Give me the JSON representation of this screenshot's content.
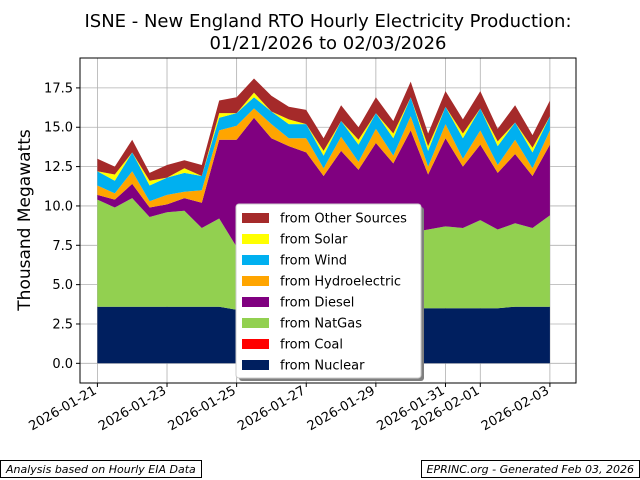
{
  "chart_data": {
    "type": "area",
    "stacked": true,
    "title_line1": "ISNE - New England RTO Hourly Electricity Production:",
    "title_line2": "01/21/2026 to 02/03/2026",
    "xlabel": "",
    "ylabel": "Thousand Megawatts",
    "ylim": [
      -1.25,
      19.4
    ],
    "yticks": [
      0.0,
      2.5,
      5.0,
      7.5,
      10.0,
      12.5,
      15.0,
      17.5
    ],
    "ytick_labels": [
      "0.0",
      "2.5",
      "5.0",
      "7.5",
      "10.0",
      "12.5",
      "15.0",
      "17.5"
    ],
    "xlim": [
      "2026-01-20T12:00",
      "2026-02-03T18:00"
    ],
    "xticks": [
      "2026-01-21",
      "2026-01-23",
      "2026-01-25",
      "2026-01-27",
      "2026-01-29",
      "2026-01-31",
      "2026-02-01",
      "2026-02-03"
    ],
    "grid": true,
    "legend_position": "lower-center",
    "x": [
      "2026-01-21T00:00",
      "2026-01-21T12:00",
      "2026-01-22T00:00",
      "2026-01-22T12:00",
      "2026-01-23T00:00",
      "2026-01-23T12:00",
      "2026-01-24T00:00",
      "2026-01-24T12:00",
      "2026-01-25T00:00",
      "2026-01-25T12:00",
      "2026-01-26T00:00",
      "2026-01-26T12:00",
      "2026-01-27T00:00",
      "2026-01-27T12:00",
      "2026-01-28T00:00",
      "2026-01-28T12:00",
      "2026-01-29T00:00",
      "2026-01-29T12:00",
      "2026-01-30T00:00",
      "2026-01-30T12:00",
      "2026-01-31T00:00",
      "2026-01-31T12:00",
      "2026-02-01T00:00",
      "2026-02-01T12:00",
      "2026-02-02T00:00",
      "2026-02-02T12:00",
      "2026-02-03T00:00"
    ],
    "series": [
      {
        "name": "from Nuclear",
        "color": "#001f5f",
        "values": [
          3.6,
          3.6,
          3.6,
          3.6,
          3.6,
          3.6,
          3.6,
          3.6,
          3.4,
          3.4,
          3.4,
          3.4,
          3.4,
          3.4,
          3.4,
          3.4,
          3.4,
          3.4,
          3.5,
          3.5,
          3.5,
          3.5,
          3.5,
          3.5,
          3.6,
          3.6,
          3.6
        ]
      },
      {
        "name": "from Coal",
        "color": "#ff0000",
        "values": [
          0,
          0,
          0,
          0,
          0,
          0,
          0,
          0,
          0,
          0,
          0,
          0,
          0,
          0,
          0,
          0,
          0,
          0,
          0,
          0,
          0,
          0,
          0,
          0,
          0,
          0,
          0
        ]
      },
      {
        "name": "from NatGas",
        "color": "#92d050",
        "values": [
          6.8,
          6.3,
          6.9,
          5.7,
          6.0,
          6.1,
          5.0,
          5.6,
          4.0,
          4.2,
          4.5,
          4.6,
          4.8,
          4.5,
          4.6,
          4.3,
          4.7,
          4.6,
          4.8,
          5.0,
          5.2,
          5.1,
          5.6,
          5.0,
          5.3,
          5.0,
          5.8
        ]
      },
      {
        "name": "from Diesel",
        "color": "#800080",
        "values": [
          0.3,
          0.5,
          0.9,
          0.6,
          0.5,
          0.8,
          1.6,
          5.0,
          6.8,
          8.0,
          6.4,
          5.8,
          5.2,
          4.0,
          5.5,
          4.6,
          5.9,
          4.7,
          6.5,
          3.5,
          5.6,
          3.9,
          4.8,
          3.6,
          4.4,
          3.3,
          4.5
        ]
      },
      {
        "name": "from Hydroelectric",
        "color": "#ffa500",
        "values": [
          0.6,
          0.4,
          0.8,
          0.4,
          0.6,
          0.4,
          0.8,
          0.6,
          0.9,
          0.6,
          0.9,
          0.5,
          0.9,
          0.5,
          0.9,
          0.5,
          0.9,
          0.5,
          0.9,
          0.5,
          0.9,
          0.5,
          0.9,
          0.5,
          0.9,
          0.5,
          0.9
        ]
      },
      {
        "name": "from Wind",
        "color": "#00b0f0",
        "values": [
          0.9,
          0.8,
          1.2,
          1.0,
          1.1,
          1.2,
          0.9,
          0.8,
          0.8,
          0.7,
          0.8,
          0.9,
          0.9,
          0.8,
          1.0,
          1.1,
          1.0,
          1.1,
          1.2,
          1.0,
          1.1,
          1.3,
          1.4,
          1.2,
          1.1,
          1.0,
          0.9
        ]
      },
      {
        "name": "from Solar",
        "color": "#ffff00",
        "values": [
          0,
          0.4,
          0,
          0.3,
          0,
          0.3,
          0,
          0.3,
          0,
          0.3,
          0,
          0.3,
          0,
          0.3,
          0,
          0.3,
          0,
          0.3,
          0,
          0.3,
          0,
          0.3,
          0,
          0.3,
          0,
          0.3,
          0
        ]
      },
      {
        "name": "from Other Sources",
        "color": "#a52a2a",
        "values": [
          0.8,
          0.5,
          0.8,
          0.5,
          0.8,
          0.5,
          0.7,
          0.8,
          1.0,
          0.9,
          1.0,
          0.8,
          0.9,
          0.8,
          1.0,
          0.8,
          1.0,
          0.8,
          1.0,
          0.8,
          1.0,
          0.9,
          1.1,
          0.8,
          1.1,
          0.8,
          1.0
        ]
      }
    ]
  },
  "footer": {
    "left": "Analysis based on Hourly EIA Data",
    "right": "EPRINC.org - Generated Feb 03, 2026"
  }
}
